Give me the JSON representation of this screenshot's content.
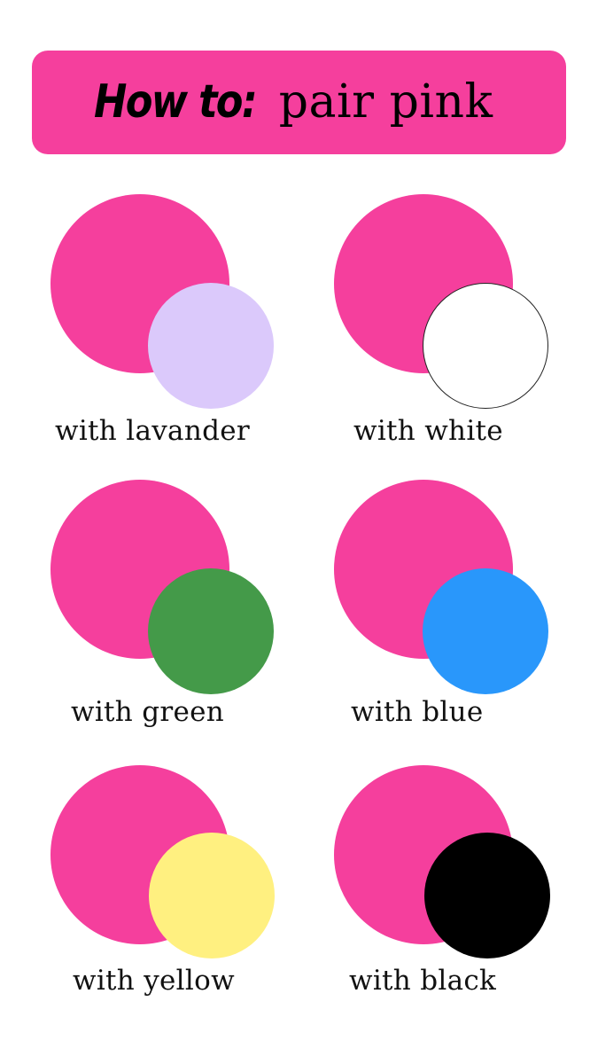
{
  "header": {
    "title_lead": "How to:",
    "title_rest": "pair pink",
    "background_color": "#f53f9d"
  },
  "base_color": "#f53f9d",
  "pairs": [
    {
      "label": "with lavander",
      "accent_color": "#dbc9fb"
    },
    {
      "label": "with white",
      "accent_color": "#ffffff"
    },
    {
      "label": "with green",
      "accent_color": "#449a49"
    },
    {
      "label": "with blue",
      "accent_color": "#2997fb"
    },
    {
      "label": "with yellow",
      "accent_color": "#fff080"
    },
    {
      "label": "with black",
      "accent_color": "#000000"
    }
  ]
}
